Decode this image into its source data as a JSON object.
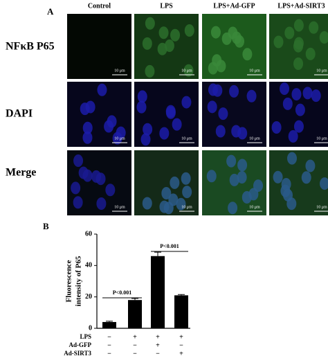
{
  "panel_a": {
    "label": "A",
    "columns": [
      "Control",
      "LPS",
      "LPS+Ad-GFP",
      "LPS+Ad-SIRT3"
    ],
    "rows": [
      "NFκB P65",
      "DAPI",
      "Merge"
    ],
    "scale_bar": "10 μm"
  },
  "chart_data": {
    "type": "bar",
    "panel_label": "B",
    "ylabel": [
      "Fluorescence",
      "intensity of P65"
    ],
    "values": [
      4,
      18,
      46,
      21
    ],
    "errors": [
      0.5,
      1,
      2.5,
      0.5
    ],
    "color": "#000000",
    "ylim": [
      0,
      60
    ],
    "yticks": [
      0,
      20,
      40,
      60
    ],
    "annotations": [
      "P<0.001",
      "P<0.001"
    ],
    "treatments": [
      {
        "name": "LPS",
        "signs": [
          "−",
          "+",
          "+",
          "+"
        ]
      },
      {
        "name": "Ad-GFP",
        "signs": [
          "−",
          "−",
          "+",
          "−"
        ]
      },
      {
        "name": "Ad-SIRT3",
        "signs": [
          "−",
          "−",
          "−",
          "+"
        ]
      }
    ]
  }
}
